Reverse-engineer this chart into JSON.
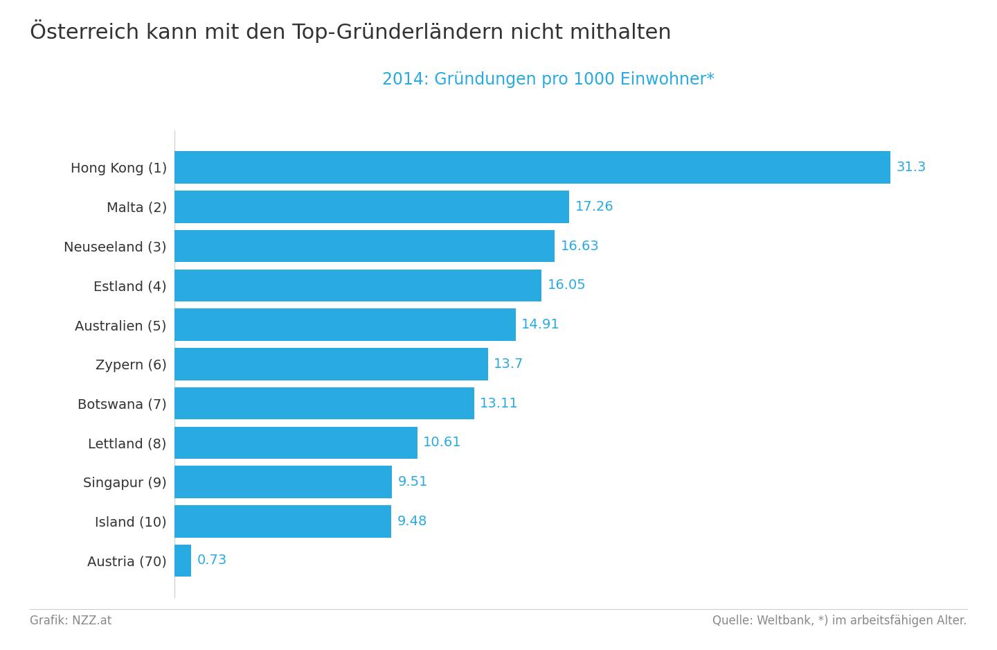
{
  "title": "Österreich kann mit den Top-Gründerländern nicht mithalten",
  "subtitle": "2014: Gründungen pro 1000 Einwohner*",
  "categories": [
    "Hong Kong (1)",
    "Malta (2)",
    "Neuseeland (3)",
    "Estland (4)",
    "Australien (5)",
    "Zypern (6)",
    "Botswana (7)",
    "Lettland (8)",
    "Singapur (9)",
    "Island (10)",
    "Austria (70)"
  ],
  "values": [
    31.3,
    17.26,
    16.63,
    16.05,
    14.91,
    13.7,
    13.11,
    10.61,
    9.51,
    9.48,
    0.73
  ],
  "bar_color": "#29ABE2",
  "label_color": "#29ABE2",
  "title_color": "#333333",
  "subtitle_color": "#29ABE2",
  "footer_left": "Grafik: NZZ.at",
  "footer_right": "Quelle: Weltbank, *) im arbeitsfähigen Alter.",
  "footer_color": "#888888",
  "background_color": "#FFFFFF",
  "xlim": [
    0,
    34
  ],
  "bar_height": 0.82,
  "title_fontsize": 22,
  "subtitle_fontsize": 17,
  "label_fontsize": 14,
  "ytick_fontsize": 14,
  "footer_fontsize": 12
}
